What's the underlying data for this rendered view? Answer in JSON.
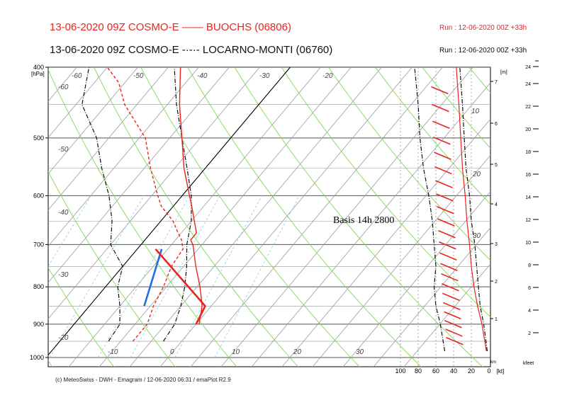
{
  "header": {
    "line1": "13-06-2020 09Z COSMO-E  ——  BUOCHS (06806)",
    "line2": "13-06-2020 09Z COSMO-E  -·-·-  LOCARNO-MONTI (06760)",
    "run1": "Run : 12-06-2020 00Z +33h",
    "run2": "Run : 12-06-2020 00Z +33h"
  },
  "footer": {
    "credit": "(c) MeteoSwiss - DWH - Emagram / 12-06-2020  06:31  / emaPlot R2.9"
  },
  "colors": {
    "buochs": "#e8241c",
    "locarno": "#111111",
    "annotation_line": "#1e6fe0",
    "isotherm": "#9a9a9a",
    "dry_adiabat": "#7ed957",
    "mixing_ratio": "#8fd3e8"
  },
  "chart_data": {
    "type": "line",
    "title": "13-06-2020 09Z COSMO-E",
    "y_axis": {
      "label": "[hPa]",
      "scale": "log",
      "range": [
        1000,
        400
      ],
      "ticks": [
        400,
        500,
        600,
        700,
        800,
        900,
        1000
      ]
    },
    "x_axis": {
      "label": "",
      "temperature_labels": [
        -10,
        0,
        10,
        20,
        30
      ],
      "upper_isotherm_labels": [
        -60,
        -50,
        -40,
        -30,
        -20
      ]
    },
    "left_isotherm_labels": [
      -60,
      -50,
      -40,
      -30,
      -20
    ],
    "altitude_axis_km": {
      "unit": "[m]",
      "ticks": [
        1,
        2,
        3,
        4,
        5,
        6,
        7
      ]
    },
    "altitude_axis_kfeet": {
      "unit": "kfeet",
      "ticks": [
        2,
        4,
        6,
        8,
        10,
        12,
        14,
        16,
        18,
        20,
        22,
        24
      ]
    },
    "wind_axis": {
      "unit": "[kt]",
      "ticks": [
        100,
        80,
        60,
        40,
        20,
        0
      ],
      "isotach_labels": [
        10,
        20,
        30
      ]
    },
    "annotation": "Basis 14h 2800",
    "series": [
      {
        "name": "BUOCHS (06806)",
        "temperature": [
          [
            900,
            20.5
          ],
          [
            850,
            18.5
          ],
          [
            800,
            15.5
          ],
          [
            750,
            12
          ],
          [
            700,
            8.5
          ],
          [
            690,
            7.5
          ],
          [
            675,
            7.5
          ],
          [
            650,
            5.5
          ],
          [
            620,
            3
          ],
          [
            600,
            1.2
          ],
          [
            550,
            -3.5
          ],
          [
            500,
            -8
          ],
          [
            450,
            -13
          ],
          [
            400,
            -18
          ]
        ],
        "dewpoint": [
          [
            950,
            12
          ],
          [
            900,
            12
          ],
          [
            850,
            10.5
          ],
          [
            800,
            9.5
          ],
          [
            750,
            8
          ],
          [
            710,
            7.5
          ],
          [
            690,
            6
          ],
          [
            670,
            4
          ],
          [
            650,
            2
          ],
          [
            620,
            -2
          ],
          [
            600,
            -4
          ],
          [
            550,
            -9
          ],
          [
            500,
            -14
          ],
          [
            450,
            -22
          ],
          [
            420,
            -26
          ],
          [
            400,
            -30
          ]
        ]
      },
      {
        "name": "LOCARNO-MONTI (06760)",
        "temperature": [
          [
            950,
            17
          ],
          [
            900,
            16.5
          ],
          [
            850,
            15
          ],
          [
            800,
            13
          ],
          [
            750,
            10.5
          ],
          [
            700,
            7.5
          ],
          [
            650,
            5
          ],
          [
            600,
            1.5
          ],
          [
            550,
            -3
          ],
          [
            500,
            -8
          ],
          [
            450,
            -13.5
          ],
          [
            400,
            -19
          ]
        ],
        "dewpoint": [
          [
            950,
            8
          ],
          [
            900,
            7.5
          ],
          [
            850,
            5
          ],
          [
            800,
            2
          ],
          [
            750,
            0
          ],
          [
            700,
            -5
          ],
          [
            650,
            -8
          ],
          [
            600,
            -12
          ],
          [
            550,
            -17
          ],
          [
            500,
            -22
          ],
          [
            450,
            -29
          ],
          [
            400,
            -33
          ]
        ]
      }
    ],
    "annotation_lines": [
      {
        "color": "blue",
        "points": [
          [
            850,
            9
          ],
          [
            710,
            4
          ]
        ]
      },
      {
        "color": "red",
        "points": [
          [
            900,
            20
          ],
          [
            850,
            19
          ],
          [
            710,
            3
          ]
        ]
      }
    ]
  }
}
